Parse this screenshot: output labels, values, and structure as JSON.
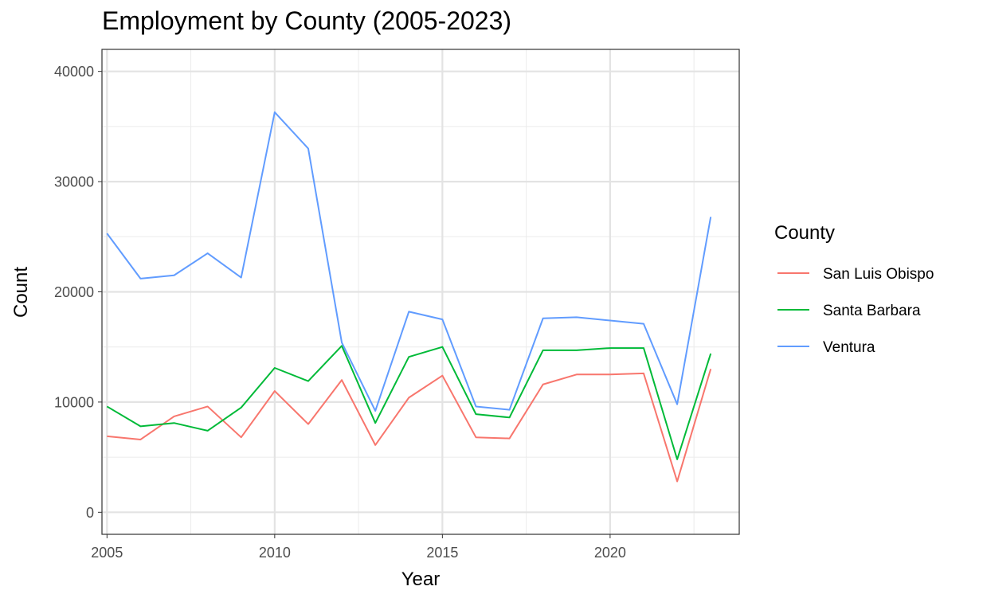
{
  "chart_data": {
    "type": "line",
    "title": "Employment by County (2005-2023)",
    "xlabel": "Year",
    "ylabel": "Count",
    "xlim": [
      2004.85,
      2023.85
    ],
    "ylim": [
      -2000,
      42000
    ],
    "xticks": [
      2005,
      2010,
      2015,
      2020
    ],
    "yticks": [
      0,
      10000,
      20000,
      30000,
      40000
    ],
    "grid": true,
    "legend": {
      "title": "County",
      "position": "right"
    },
    "x": [
      2005,
      2006,
      2007,
      2008,
      2009,
      2010,
      2011,
      2012,
      2013,
      2014,
      2015,
      2016,
      2017,
      2018,
      2019,
      2020,
      2021,
      2022,
      2023
    ],
    "series": [
      {
        "name": "San Luis Obispo",
        "color": "#F8766D",
        "values": [
          6900,
          6600,
          8700,
          9600,
          6800,
          11000,
          8000,
          12000,
          6100,
          10400,
          12400,
          6800,
          6700,
          11600,
          12500,
          12500,
          12600,
          2800,
          13000
        ]
      },
      {
        "name": "Santa Barbara",
        "color": "#00BA38",
        "values": [
          9600,
          7800,
          8100,
          7400,
          9500,
          13100,
          11900,
          15100,
          8100,
          14100,
          15000,
          8900,
          8600,
          14700,
          14700,
          14900,
          14900,
          4800,
          14400
        ]
      },
      {
        "name": "Ventura",
        "color": "#619CFF",
        "values": [
          25300,
          21200,
          21500,
          23500,
          21300,
          36300,
          33000,
          15400,
          9200,
          18200,
          17500,
          9600,
          9300,
          17600,
          17700,
          17400,
          17100,
          9800,
          26800
        ]
      }
    ]
  }
}
